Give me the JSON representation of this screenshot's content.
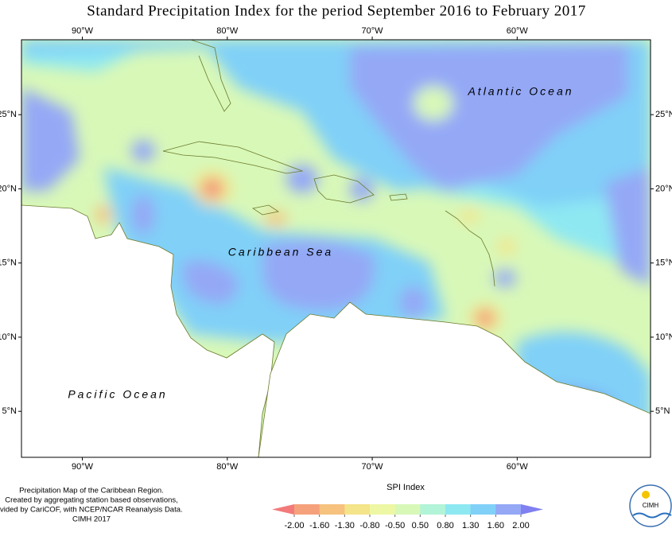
{
  "title": "Standard Precipitation Index for the period September 2016 to February 2017",
  "map": {
    "xlim": [
      -94.2,
      -50.8
    ],
    "ylim": [
      1.9,
      30.05
    ],
    "lon_ticks": [
      {
        "value": -90,
        "label": "90°W"
      },
      {
        "value": -80,
        "label": "80°W"
      },
      {
        "value": -70,
        "label": "70°W"
      },
      {
        "value": -60,
        "label": "60°W"
      }
    ],
    "lat_ticks": [
      {
        "value": 25,
        "label": "25°N"
      },
      {
        "value": 20,
        "label": "20°N"
      },
      {
        "value": 15,
        "label": "15°N"
      },
      {
        "value": 10,
        "label": "10°N"
      },
      {
        "value": 5,
        "label": "5°N"
      }
    ],
    "labels": [
      "Atlantic Ocean",
      "Caribbean Sea",
      "Pacific Ocean"
    ]
  },
  "notes": [
    "Precipitation Map of the Caribbean Region.",
    "Created by aggregating station based observations,",
    "vided by CariCOF, with NCEP/NCAR Reanalysis Data.",
    "CIMH 2017"
  ],
  "legend": {
    "title": "SPI Index",
    "ticks": [
      {
        "value": -2,
        "label": "-2.00"
      },
      {
        "value": -1.6,
        "label": "-1.60"
      },
      {
        "value": -1.3,
        "label": "-1.30"
      },
      {
        "value": -0.8,
        "label": "-0.80"
      },
      {
        "value": -0.5,
        "label": "-0.50"
      },
      {
        "value": 0.5,
        "label": "0.50"
      },
      {
        "value": 0.8,
        "label": "0.80"
      },
      {
        "value": 1.3,
        "label": "1.30"
      },
      {
        "value": 1.6,
        "label": "1.60"
      },
      {
        "value": 2,
        "label": "2.00"
      }
    ],
    "colors": [
      "#f27a7a",
      "#f5a27c",
      "#f6c27e",
      "#f4e48a",
      "#eef7a4",
      "#d8f8b8",
      "#b2f4d8",
      "#8ee8f2",
      "#80d0f8",
      "#94a8f6",
      "#8080f0"
    ]
  },
  "logo": "CIMH"
}
